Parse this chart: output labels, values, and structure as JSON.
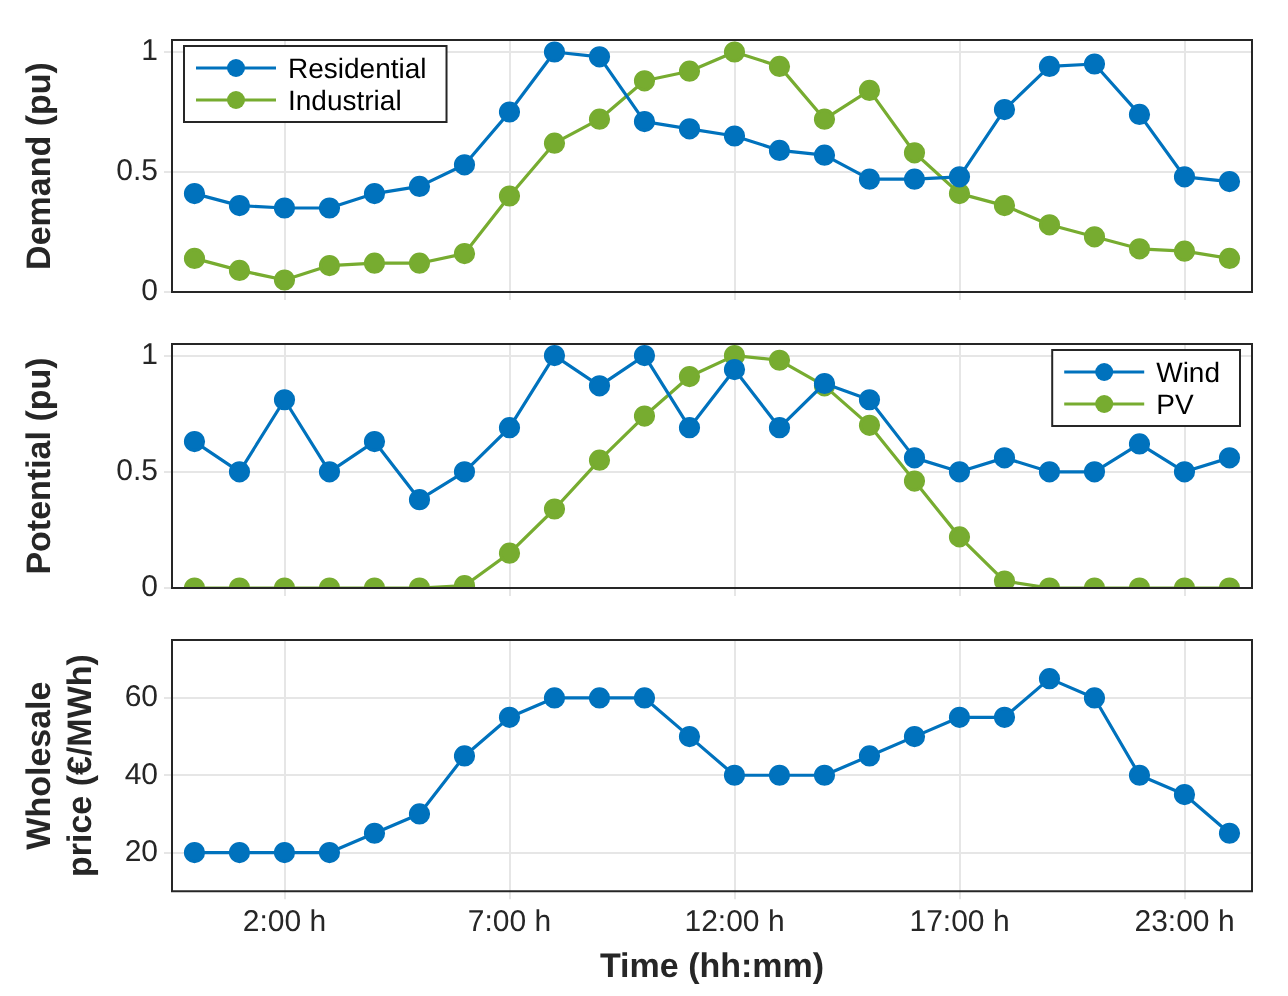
{
  "chart_data": [
    {
      "type": "line",
      "ylabel": "Demand (pu)",
      "categories": [
        null,
        null,
        null,
        null,
        null,
        null,
        null,
        null,
        null,
        null,
        null,
        null,
        null,
        null,
        null,
        null,
        null,
        null,
        null,
        null,
        null,
        null,
        null,
        null
      ],
      "ylim": [
        0,
        1.05
      ],
      "yticks": [
        0,
        0.5,
        1
      ],
      "grid": true,
      "legend": "top left",
      "marker": "circle",
      "line_style": "solid",
      "tick_labels": "y",
      "series": [
        {
          "name": "Residential",
          "color": "#0072bd",
          "values": [
            0.41,
            0.36,
            0.35,
            0.35,
            0.41,
            0.44,
            0.53,
            0.75,
            1.0,
            0.98,
            0.71,
            0.68,
            0.65,
            0.59,
            0.57,
            0.47,
            0.47,
            0.48,
            0.76,
            0.94,
            0.95,
            0.74,
            0.48,
            0.46
          ]
        },
        {
          "name": "Industrial",
          "color": "#77ac30",
          "values": [
            0.14,
            0.09,
            0.05,
            0.11,
            0.12,
            0.12,
            0.16,
            0.4,
            0.62,
            0.72,
            0.88,
            0.92,
            1.0,
            0.94,
            0.72,
            0.84,
            0.58,
            0.41,
            0.36,
            0.28,
            0.23,
            0.18,
            0.17,
            0.14
          ]
        }
      ]
    },
    {
      "type": "line",
      "ylabel": "Potential (pu)",
      "categories": [
        null,
        null,
        null,
        null,
        null,
        null,
        null,
        null,
        null,
        null,
        null,
        null,
        null,
        null,
        null,
        null,
        null,
        null,
        null,
        null,
        null,
        null,
        null,
        null
      ],
      "ylim": [
        0,
        1.05
      ],
      "yticks": [
        0,
        0.5,
        1
      ],
      "grid": true,
      "legend": "top right",
      "marker": "circle",
      "line_style": "solid",
      "tick_labels": "y",
      "series": [
        {
          "name": "Wind",
          "color": "#0072bd",
          "values": [
            0.63,
            0.5,
            0.81,
            0.5,
            0.63,
            0.38,
            0.5,
            0.69,
            1.0,
            0.87,
            1.0,
            0.69,
            0.94,
            0.69,
            0.88,
            0.81,
            0.56,
            0.5,
            0.56,
            0.5,
            0.5,
            0.62,
            0.5,
            0.56
          ]
        },
        {
          "name": "PV",
          "color": "#77ac30",
          "values": [
            0,
            0,
            0,
            0,
            0,
            0,
            0.01,
            0.15,
            0.34,
            0.55,
            0.74,
            0.91,
            1.0,
            0.98,
            0.87,
            0.7,
            0.46,
            0.22,
            0.03,
            0,
            0,
            0,
            0,
            0
          ]
        }
      ]
    },
    {
      "type": "line",
      "ylabel": "Wholesale price (€/MWh)",
      "xlabel": "Time (hh:mm)",
      "categories": [
        null,
        null,
        "2:00 h",
        null,
        null,
        null,
        null,
        "7:00 h",
        null,
        null,
        null,
        null,
        "12:00 h",
        null,
        null,
        null,
        null,
        "17:00 h",
        null,
        null,
        null,
        null,
        "23:00 h",
        null
      ],
      "ylim": [
        10,
        75
      ],
      "yticks": [
        20,
        40,
        60
      ],
      "grid": true,
      "marker": "circle",
      "line_style": "solid",
      "series": [
        {
          "color": "#0072bd",
          "values": [
            20,
            20,
            20,
            20,
            25,
            30,
            45,
            55,
            60,
            60,
            60,
            50,
            40,
            40,
            40,
            45,
            50,
            55,
            55,
            65,
            60,
            40,
            35,
            25
          ]
        }
      ]
    }
  ]
}
